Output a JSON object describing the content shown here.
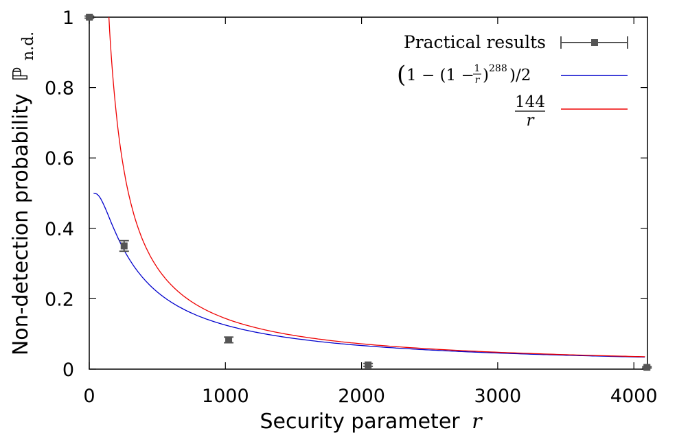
{
  "chart_data": {
    "type": "line",
    "xlabel": "Security parameter",
    "xlabel_var": "r",
    "ylabel": "Non-detection probability",
    "ylabel_symbol": "ℙ",
    "ylabel_subscript": "n.d.",
    "xlim": [
      0,
      4100
    ],
    "ylim": [
      0,
      1
    ],
    "x_ticks": [
      0,
      1000,
      2000,
      3000,
      4000
    ],
    "y_ticks": [
      0,
      0.2,
      0.4,
      0.6,
      0.8,
      1
    ],
    "y_tick_labels": [
      "0",
      "0.2",
      "0.4",
      "0.6",
      "0.8",
      "1"
    ],
    "grid": false,
    "legend_position": "top-right",
    "series": [
      {
        "name": "Practical results",
        "kind": "errorbar",
        "color": "#555555",
        "points": [
          {
            "x": 1,
            "y": 1.0,
            "err": 0.003,
            "xerr": 20
          },
          {
            "x": 256,
            "y": 0.35,
            "err": 0.015,
            "xerr": 0
          },
          {
            "x": 1024,
            "y": 0.083,
            "err": 0.008,
            "xerr": 0
          },
          {
            "x": 2048,
            "y": 0.012,
            "err": 0.004,
            "xerr": 0
          },
          {
            "x": 4096,
            "y": 0.005,
            "err": 0.002,
            "xerr": 20
          }
        ]
      },
      {
        "name": "(1 − (1 − 1/r)^288)/2",
        "legend_parts": {
          "open": "(",
          "one": "1 − (1 − ",
          "num": "1",
          "den": "r",
          "close": ")",
          "exp": "288",
          "tail": ")/2"
        },
        "kind": "curve",
        "formula": "half_pow",
        "color": "#0000cc"
      },
      {
        "name": "144/r",
        "legend_parts": {
          "num": "144",
          "den": "r"
        },
        "kind": "curve",
        "formula": "inverse",
        "color": "#ee0000"
      }
    ]
  }
}
